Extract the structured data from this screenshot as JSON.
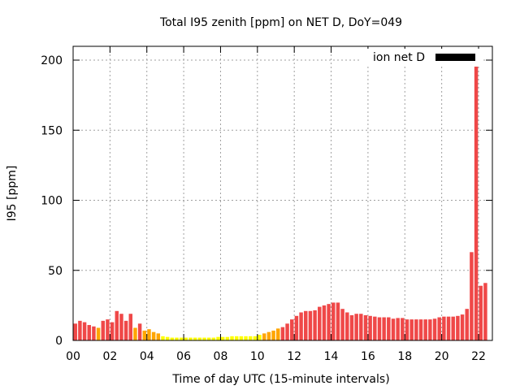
{
  "chart_data": {
    "type": "bar",
    "title": "Total I95 zenith [ppm] on NET D, DoY=049",
    "xlabel": "Time of day UTC (15-minute intervals)",
    "ylabel": "I95 [ppm]",
    "ylim": [
      0,
      210
    ],
    "xlim_hours": [
      0,
      22.75
    ],
    "grid": true,
    "legend": {
      "label": "ion net D",
      "placement": "top-right",
      "color": "#000000"
    },
    "x_tick_labels": [
      "00",
      "02",
      "04",
      "06",
      "08",
      "10",
      "12",
      "14",
      "16",
      "18",
      "20",
      "22"
    ],
    "x_tick_hours": [
      0,
      2,
      4,
      6,
      8,
      10,
      12,
      14,
      16,
      18,
      20,
      22
    ],
    "y_ticks": [
      0,
      50,
      100,
      150,
      200
    ],
    "interval_minutes": 15,
    "color_thresholds": [
      {
        "max": 4,
        "color": "#ffff00"
      },
      {
        "max": 9,
        "color": "#ffa500"
      },
      {
        "max": 1000,
        "color": "#ef4848"
      }
    ],
    "values": [
      12,
      14,
      13,
      11,
      10,
      9,
      14,
      15,
      13,
      21,
      19,
      14,
      19,
      9,
      12,
      7,
      8,
      6,
      5,
      3,
      2.5,
      2,
      2,
      2,
      2,
      2,
      2,
      2,
      2,
      2,
      2,
      2.5,
      2.5,
      2.5,
      3,
      3,
      3,
      3,
      3,
      3,
      4,
      5,
      6,
      7,
      8.5,
      9.5,
      12,
      15,
      17.5,
      20,
      21,
      21,
      21.5,
      24,
      25,
      26,
      27,
      27,
      22.5,
      20,
      18,
      19,
      19,
      18,
      17.5,
      17,
      16.5,
      16.5,
      16.5,
      15.5,
      16,
      16,
      15,
      15,
      15,
      15,
      15,
      15,
      15.5,
      16.5,
      17,
      17,
      17,
      17.5,
      18.5,
      22.5,
      63,
      200,
      39,
      41
    ]
  }
}
